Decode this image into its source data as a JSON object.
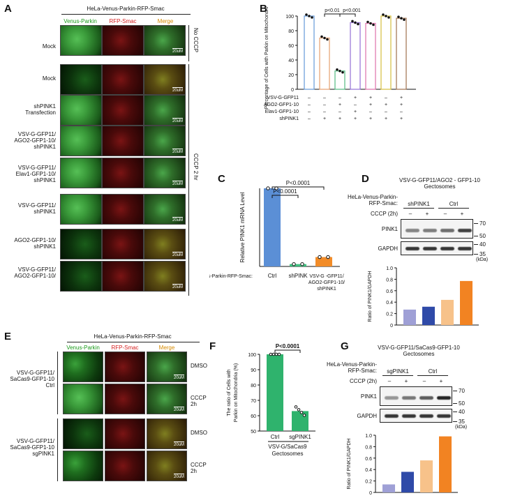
{
  "panelA": {
    "label": "A",
    "title": "HeLa-Venus-Parkin-RFP-Smac",
    "cols": [
      "Venus-Parkin",
      "RFP-Smac",
      "Merge"
    ],
    "rows": [
      "Mock",
      "Mock",
      "shPINK1 Transfection",
      "VSV-G-GFP11/ AGO2-GFP1-10/ shPINK1",
      "VSV-G-GFP11/ Elav1-GFP1-10/ shPINK1",
      "VSV-G-GFP11/ shPINK1",
      "AGO2-GFP1-10/ shPINK1",
      "VSV-G-GFP11/ AGO2-GFP1-10/"
    ],
    "side_no_cccp": "No CCCP",
    "side_cccp": "CCCP 2 hr",
    "scale": "20uM"
  },
  "panelB": {
    "label": "B",
    "chart_data": {
      "type": "bar",
      "ylabel": "Percentage of Cells with Parkin on Mitochondria (%)",
      "ylim": [
        0,
        100
      ],
      "yticks": [
        "0",
        "20",
        "40",
        "60",
        "80",
        "100"
      ],
      "values": [
        100,
        70,
        25,
        91,
        90,
        100,
        97
      ],
      "colors": [
        "#6fa0dc",
        "#e8a87a",
        "#5fc08a",
        "#9b7bd8",
        "#e07bb0",
        "#d9c34a",
        "#a67b5b"
      ],
      "annotations": [
        "p<0.01",
        "p<0.001"
      ],
      "rows": [
        {
          "name": "VSV-G-GFP11",
          "marks": [
            "–",
            "–",
            "–",
            "+",
            "+",
            "–",
            "+"
          ]
        },
        {
          "name": "AGO2-GFP1-10",
          "marks": [
            "–",
            "–",
            "+",
            "–",
            "+",
            "+",
            "+"
          ]
        },
        {
          "name": "Elav1-GFP1-10",
          "marks": [
            "–",
            "–",
            "–",
            "+",
            "–",
            "–",
            "–"
          ]
        },
        {
          "name": "shPINK1",
          "marks": [
            "–",
            "+",
            "+",
            "+",
            "+",
            "+",
            "+"
          ]
        }
      ]
    }
  },
  "panelC": {
    "label": "C",
    "chart_data": {
      "type": "bar",
      "ylabel": "Relative PINK1 mRNA Level",
      "ylim": [
        0,
        1.0
      ],
      "categories": [
        "Ctrl",
        "shPINK",
        "VSV-G -GFP11/ AGO2-GFP1-10/ shPINK1"
      ],
      "values": [
        1.0,
        0.03,
        0.12
      ],
      "colors": [
        "#5b8fd6",
        "#3fbf7f",
        "#f28c28"
      ],
      "annotations": [
        "P<0.0001",
        "P<0.0001"
      ],
      "row_label": "HeLa-Venus-Parkin-RFP-Smac:"
    }
  },
  "panelD": {
    "label": "D",
    "header": "VSV-G-GFP11/AGO2 - GFP1-10 Gectosomes",
    "row_label": "HeLa-Venus-Parkin-RFP-Smac:",
    "groups": [
      "shPINK1",
      "Ctrl"
    ],
    "cccp_label": "CCCP (2h)",
    "cccp_marks": [
      "–",
      "+",
      "–",
      "+"
    ],
    "blots": [
      "PINK1",
      "GAPDH"
    ],
    "mw": [
      "70",
      "50",
      "40",
      "35"
    ],
    "kda": "(kDa)",
    "chart_data": {
      "type": "bar",
      "ylabel": "Ratio of PINK1/GAPDH",
      "ylim": [
        0,
        1.0
      ],
      "yticks": [
        "0",
        "0.2",
        "0.4",
        "0.6",
        "0.8",
        "1.0"
      ],
      "values": [
        0.27,
        0.32,
        0.44,
        0.77
      ],
      "colors": [
        "#9fa0d6",
        "#2f4aa8",
        "#f7c28a",
        "#f28322"
      ]
    }
  },
  "panelE": {
    "label": "E",
    "title": "HeLa-Venus-Parkin-RFP-Smac",
    "cols": [
      "Venus-Parkin",
      "RFP-Smac",
      "Merge"
    ],
    "groups": [
      "VSV-G-GFP11/ SaCas9-GFP1-10 Ctrl",
      "VSV-G-GFP11/ SaCas9-GFP1-10 sgPINK1"
    ],
    "conds": [
      "DMSO",
      "CCCP 2h",
      "DMSO",
      "CCCP 2h"
    ],
    "scale": "20uM"
  },
  "panelF": {
    "label": "F",
    "chart_data": {
      "type": "bar",
      "ylabel": "The ratio of Cells with Parkin on Mitochondria (%)",
      "ylim": [
        50,
        100
      ],
      "yticks": [
        "50",
        "60",
        "70",
        "80",
        "90",
        "100"
      ],
      "categories": [
        "Ctrl",
        "sgPINK1"
      ],
      "values": [
        100,
        63
      ],
      "color": "#2fb36d",
      "annotation": "P<0.0001",
      "group_label": "VSV-G/SaCas9 Gectosomes"
    }
  },
  "panelG": {
    "label": "G",
    "header": "VSV-G-GFP11/SaCas9-GFP1-10 Gectosomes",
    "row_label": "HeLa-Venus-Parkin-RFP-Smac:",
    "groups": [
      "sgPINK1",
      "Ctrl"
    ],
    "cccp_label": "CCCP (2h)",
    "cccp_marks": [
      "–",
      "+",
      "–",
      "+"
    ],
    "blots": [
      "PINK1",
      "GAPDH"
    ],
    "mw": [
      "70",
      "50",
      "40",
      "35"
    ],
    "kda": "(kDa)",
    "chart_data": {
      "type": "bar",
      "ylabel": "Ratio of PINK1/GAPDH",
      "ylim": [
        0,
        1.0
      ],
      "yticks": [
        "0",
        "0.2",
        "0.4",
        "0.6",
        "0.8",
        "1.0"
      ],
      "values": [
        0.14,
        0.36,
        0.56,
        0.98
      ],
      "colors": [
        "#9fa0d6",
        "#2f4aa8",
        "#f7c28a",
        "#f28322"
      ]
    }
  }
}
